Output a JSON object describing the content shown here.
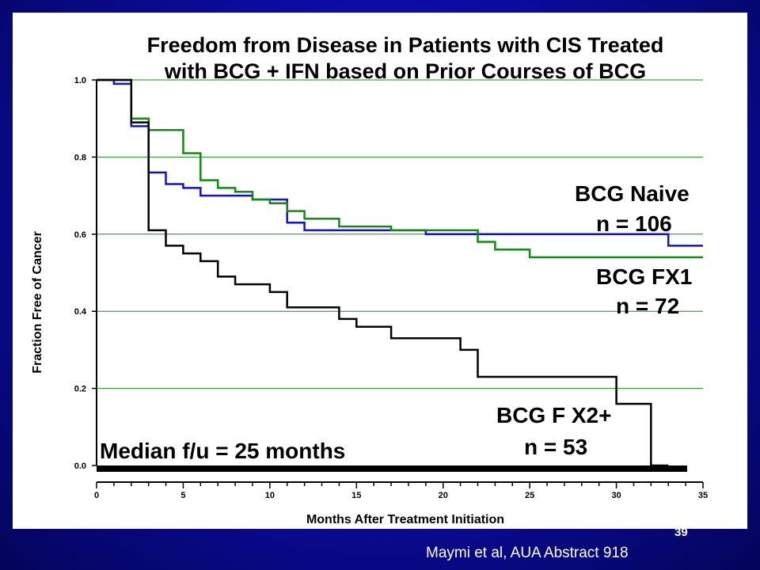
{
  "slide": {
    "number": "39",
    "citation": "Maymi et al, AUA Abstract 918"
  },
  "chart_data": {
    "type": "line",
    "title_lines": [
      "Freedom from Disease in Patients with CIS Treated",
      "with BCG + IFN based on Prior Courses of BCG"
    ],
    "xlabel": "Months After Treatment Initiation",
    "ylabel": "Fraction Free of Cancer",
    "xlim": [
      0,
      35
    ],
    "ylim": [
      0,
      1
    ],
    "x_ticks": [
      0,
      5,
      10,
      15,
      20,
      25,
      30,
      35
    ],
    "y_ticks": [
      "0.0",
      "0.2",
      "0.4",
      "0.6",
      "0.8",
      "1.0"
    ],
    "grid": "horizontal",
    "colors": {
      "grid": "#1e8c1e",
      "bcg_naive": "#1010d8",
      "bcg_fx1": "#118a11",
      "bcg_fx2": "#000000"
    },
    "series": [
      {
        "name": "BCG Naive",
        "n_label": "n = 106",
        "color_key": "bcg_naive",
        "x": [
          0,
          1,
          2,
          3,
          4,
          5,
          6,
          9,
          11,
          12,
          19,
          33,
          35
        ],
        "y": [
          1.0,
          0.99,
          0.88,
          0.76,
          0.73,
          0.72,
          0.7,
          0.69,
          0.63,
          0.61,
          0.6,
          0.57,
          0.57
        ]
      },
      {
        "name": "BCG FX1",
        "n_label": "n = 72",
        "color_key": "bcg_fx1",
        "x": [
          0,
          2,
          3,
          5,
          6,
          7,
          8,
          9,
          10,
          11,
          12,
          14,
          17,
          22,
          23,
          25,
          35
        ],
        "y": [
          1.0,
          0.9,
          0.87,
          0.81,
          0.74,
          0.72,
          0.71,
          0.69,
          0.68,
          0.66,
          0.64,
          0.62,
          0.61,
          0.58,
          0.56,
          0.54,
          0.54
        ]
      },
      {
        "name": "BCG F X2+",
        "n_label": "n = 53",
        "color_key": "bcg_fx2",
        "x": [
          0,
          2,
          3,
          4,
          5,
          6,
          7,
          8,
          10,
          11,
          14,
          15,
          17,
          21,
          22,
          30,
          32,
          33
        ],
        "y": [
          1.0,
          0.89,
          0.61,
          0.57,
          0.55,
          0.53,
          0.49,
          0.47,
          0.45,
          0.41,
          0.38,
          0.36,
          0.33,
          0.3,
          0.23,
          0.16,
          0.0,
          0.0
        ]
      }
    ],
    "annotation": "Median f/u = 25 months"
  }
}
